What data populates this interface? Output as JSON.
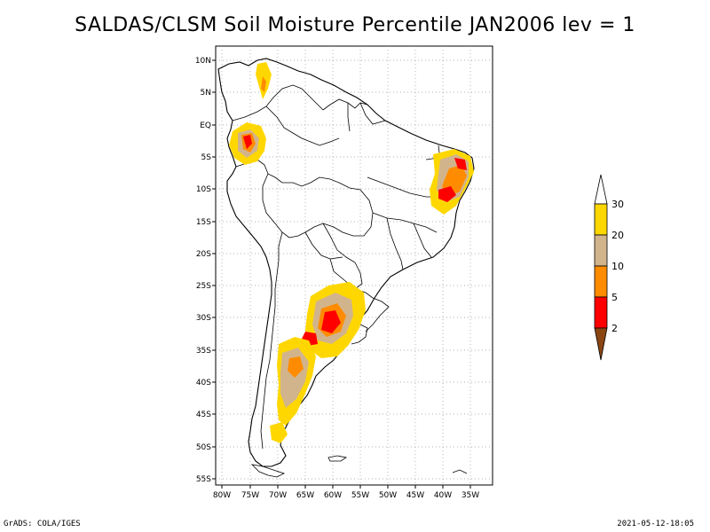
{
  "title": "SALDAS/CLSM Soil Moisture Percentile JAN2006 lev = 1",
  "footer": {
    "left": "GrADS: COLA/IGES",
    "right": "2021-05-12-18:05"
  },
  "map": {
    "lat_labels": [
      "10N",
      "5N",
      "EQ",
      "5S",
      "10S",
      "15S",
      "20S",
      "25S",
      "30S",
      "35S",
      "40S",
      "45S",
      "50S",
      "55S"
    ],
    "lon_labels": [
      "80W",
      "75W",
      "70W",
      "65W",
      "60W",
      "55W",
      "50W",
      "45W",
      "40W",
      "35W"
    ]
  },
  "legend": {
    "labels": [
      "30",
      "20",
      "10",
      "5",
      "2"
    ],
    "colors": {
      "above_30": "#ffffff",
      "c20_30": "#ffd700",
      "c10_20": "#d2b48c",
      "c5_10": "#ff8c00",
      "c2_5": "#ff0000",
      "below_2": "#8b4513"
    }
  }
}
